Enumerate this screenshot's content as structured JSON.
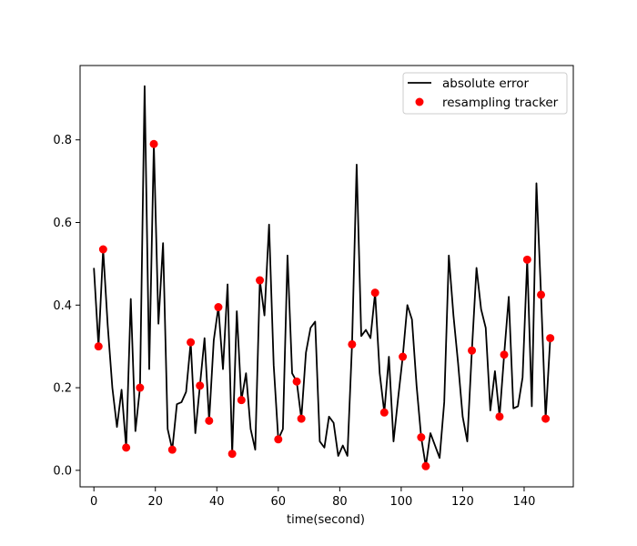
{
  "chart_data": {
    "type": "line",
    "title": "",
    "xlabel": "time(second)",
    "ylabel": "",
    "xlim": [
      -4.5,
      156
    ],
    "ylim": [
      -0.04,
      0.98
    ],
    "x_ticks": [
      0,
      20,
      40,
      60,
      80,
      100,
      120,
      140
    ],
    "y_ticks": [
      0.0,
      0.2,
      0.4,
      0.6,
      0.8
    ],
    "legend_position": "top-right",
    "grid": false,
    "series": [
      {
        "name": "absolute error",
        "kind": "line",
        "color": "#000000",
        "x": [
          0,
          1.5,
          3,
          4.5,
          6,
          7.5,
          9,
          10.5,
          12,
          13.5,
          15,
          16.5,
          18,
          19.5,
          21,
          22.5,
          24,
          25.5,
          27,
          28.5,
          30,
          31.5,
          33,
          34.5,
          36,
          37.5,
          39,
          40.5,
          42,
          43.5,
          45,
          46.5,
          48,
          49.5,
          51,
          52.5,
          54,
          55.5,
          57,
          58.5,
          60,
          61.5,
          63,
          64.5,
          66,
          67.5,
          69,
          70.5,
          72,
          73.5,
          75,
          76.5,
          78,
          79.5,
          81,
          82.5,
          84,
          85.5,
          87,
          88.5,
          90,
          91.5,
          93,
          94.5,
          96,
          97.5,
          99,
          100.5,
          102,
          103.5,
          105,
          106.5,
          108,
          109.5,
          111,
          112.5,
          114,
          115.5,
          117,
          118.5,
          120,
          121.5,
          123,
          124.5,
          126,
          127.5,
          129,
          130.5,
          132,
          133.5,
          135,
          136.5,
          138,
          139.5,
          141,
          142.5,
          144,
          145.5,
          147,
          148.5
        ],
        "y": [
          0.49,
          0.3,
          0.535,
          0.35,
          0.2,
          0.105,
          0.195,
          0.055,
          0.415,
          0.095,
          0.2,
          0.93,
          0.245,
          0.79,
          0.355,
          0.55,
          0.1,
          0.05,
          0.16,
          0.165,
          0.19,
          0.31,
          0.09,
          0.205,
          0.32,
          0.12,
          0.315,
          0.395,
          0.245,
          0.45,
          0.04,
          0.385,
          0.17,
          0.235,
          0.1,
          0.05,
          0.46,
          0.375,
          0.595,
          0.255,
          0.075,
          0.1,
          0.52,
          0.235,
          0.215,
          0.125,
          0.285,
          0.345,
          0.36,
          0.07,
          0.055,
          0.13,
          0.115,
          0.035,
          0.06,
          0.035,
          0.305,
          0.74,
          0.325,
          0.34,
          0.32,
          0.43,
          0.235,
          0.14,
          0.275,
          0.07,
          0.175,
          0.275,
          0.4,
          0.365,
          0.205,
          0.08,
          0.01,
          0.09,
          0.06,
          0.03,
          0.165,
          0.52,
          0.375,
          0.26,
          0.13,
          0.07,
          0.29,
          0.49,
          0.39,
          0.345,
          0.145,
          0.24,
          0.13,
          0.28,
          0.42,
          0.15,
          0.155,
          0.225,
          0.51,
          0.155,
          0.695,
          0.425,
          0.125,
          0.32
        ]
      },
      {
        "name": "resampling tracker",
        "kind": "scatter",
        "color": "#ff0000",
        "x": [
          1.5,
          3,
          10.5,
          15,
          19.5,
          25.5,
          31.5,
          34.5,
          37.5,
          40.5,
          45,
          48,
          54,
          60,
          66,
          67.5,
          84,
          91.5,
          94.5,
          100.5,
          106.5,
          108,
          123,
          132,
          133.5,
          141,
          145.5,
          147,
          148.5
        ],
        "y": [
          0.3,
          0.535,
          0.055,
          0.2,
          0.79,
          0.05,
          0.31,
          0.205,
          0.12,
          0.395,
          0.04,
          0.17,
          0.46,
          0.075,
          0.215,
          0.125,
          0.305,
          0.43,
          0.14,
          0.275,
          0.08,
          0.01,
          0.29,
          0.13,
          0.28,
          0.51,
          0.425,
          0.125,
          0.32
        ]
      }
    ]
  }
}
